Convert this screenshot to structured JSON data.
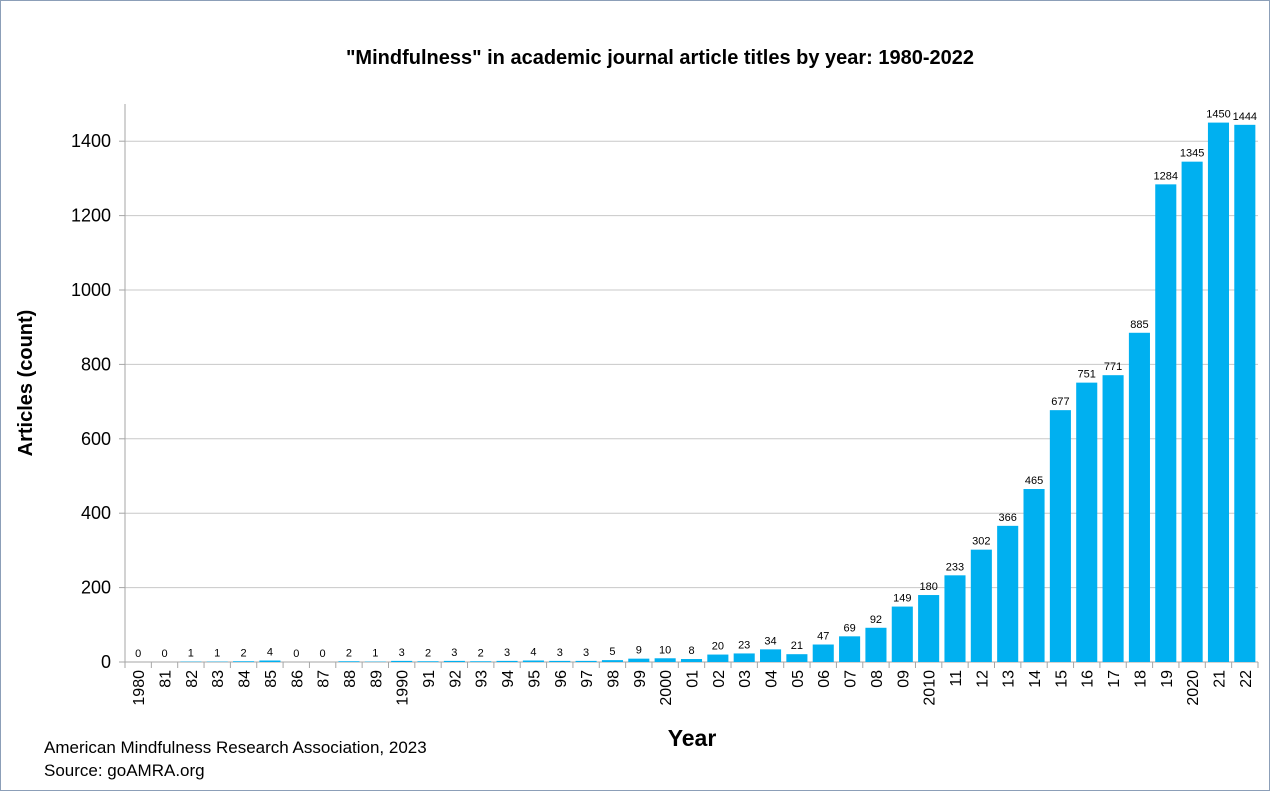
{
  "chart_data": {
    "type": "bar",
    "title": "\"Mindfulness\" in academic journal article titles by year: 1980-2022",
    "xlabel": "Year",
    "ylabel": "Articles (count)",
    "ylim": [
      0,
      1500
    ],
    "yticks": [
      0,
      200,
      400,
      600,
      800,
      1000,
      1200,
      1400
    ],
    "grid": true,
    "legend": "none",
    "bar_color": "#00b0f0",
    "categories": [
      "1980",
      "81",
      "82",
      "83",
      "84",
      "85",
      "86",
      "87",
      "88",
      "89",
      "1990",
      "91",
      "92",
      "93",
      "94",
      "95",
      "96",
      "97",
      "98",
      "99",
      "2000",
      "01",
      "02",
      "03",
      "04",
      "05",
      "06",
      "07",
      "08",
      "09",
      "2010",
      "11",
      "12",
      "13",
      "14",
      "15",
      "16",
      "17",
      "18",
      "19",
      "2020",
      "21",
      "22"
    ],
    "values": [
      0,
      0,
      1,
      1,
      2,
      4,
      0,
      0,
      2,
      1,
      3,
      2,
      3,
      2,
      3,
      4,
      3,
      3,
      5,
      9,
      10,
      8,
      20,
      23,
      34,
      21,
      47,
      69,
      92,
      149,
      180,
      233,
      302,
      366,
      465,
      677,
      751,
      771,
      885,
      1284,
      1345,
      1450,
      1444
    ]
  },
  "footer": {
    "line1": "American Mindfulness Research Association, 2023",
    "line2": "Source: goAMRA.org"
  }
}
